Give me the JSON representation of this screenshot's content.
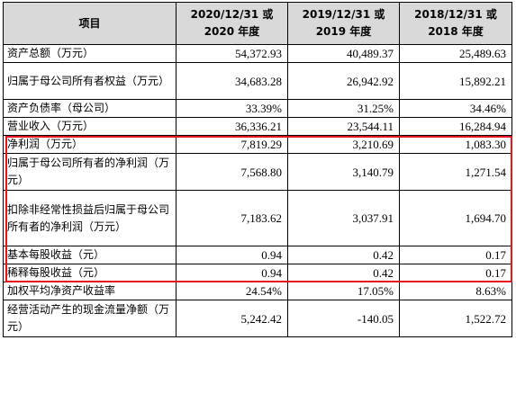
{
  "table": {
    "header": {
      "item": "项目",
      "col1": "2020/12/31 或\n2020 年度",
      "col2": "2019/12/31 或\n2019 年度",
      "col3": "2018/12/31 或\n2018 年度"
    },
    "rows": [
      {
        "label": "资产总额（万元）",
        "v2020": "54,372.93",
        "v2019": "40,489.37",
        "v2018": "25,489.63"
      },
      {
        "label": "归属于母公司所有者权益（万元）",
        "v2020": "34,683.28",
        "v2019": "26,942.92",
        "v2018": "15,892.21"
      },
      {
        "label": "资产负债率（母公司）",
        "v2020": "33.39%",
        "v2019": "31.25%",
        "v2018": "34.46%"
      },
      {
        "label": "营业收入（万元）",
        "v2020": "36,336.21",
        "v2019": "23,544.11",
        "v2018": "16,284.94"
      },
      {
        "label": "净利润（万元）",
        "v2020": "7,819.29",
        "v2019": "3,210.69",
        "v2018": "1,083.30"
      },
      {
        "label": "归属于母公司所有者的净利润（万元）",
        "v2020": "7,568.80",
        "v2019": "3,140.79",
        "v2018": "1,271.54"
      },
      {
        "label": "扣除非经常性损益后归属于母公司所有者的净利润（万元）",
        "v2020": "7,183.62",
        "v2019": "3,037.91",
        "v2018": "1,694.70"
      },
      {
        "label": "基本每股收益（元）",
        "v2020": "0.94",
        "v2019": "0.42",
        "v2018": "0.17"
      },
      {
        "label": "稀释每股收益（元）",
        "v2020": "0.94",
        "v2019": "0.42",
        "v2018": "0.17"
      },
      {
        "label": "加权平均净资产收益率",
        "v2020": "24.54%",
        "v2019": "17.05%",
        "v2018": "8.63%"
      },
      {
        "label": "经营活动产生的现金流量净额（万元）",
        "v2020": "5,242.42",
        "v2019": "-140.05",
        "v2018": "1,522.72"
      }
    ]
  },
  "highlight_color": "#e8141c"
}
